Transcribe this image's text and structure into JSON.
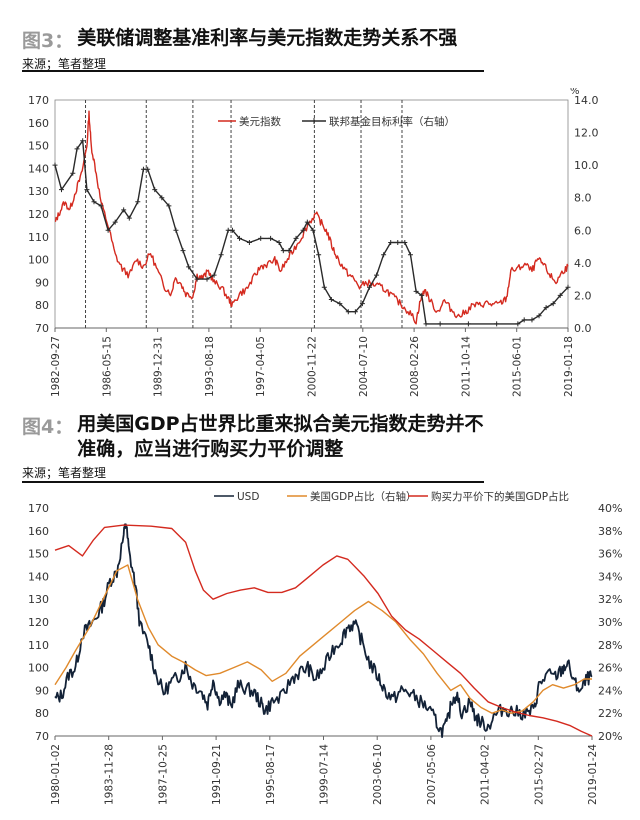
{
  "figure3": {
    "label": "图3：",
    "title": "美联储调整基准利率与美元指数走势关系不强",
    "source": "来源；笔者整理"
  },
  "figure4": {
    "label": "图4：",
    "title_line1": "用美国GDP占世界比重来拟合美元指数走势并不",
    "title_line2": "准确，应当进行购买力平价调整",
    "source": "来源；笔者整理"
  },
  "chart_data": [
    {
      "type": "line",
      "title": "",
      "y_left": {
        "ylim": [
          70,
          170
        ],
        "ticks": [
          70,
          80,
          90,
          100,
          110,
          120,
          130,
          140,
          150,
          160,
          170
        ]
      },
      "y_right": {
        "unit": "%",
        "ylim": [
          0,
          14
        ],
        "ticks": [
          "0.0",
          "2.0",
          "4.0",
          "6.0",
          "8.0",
          "10.0",
          "12.0",
          "14.0"
        ]
      },
      "x_tick_labels": [
        "1982-09-27",
        "1986-05-15",
        "1989-12-31",
        "1993-08-18",
        "1997-04-05",
        "2000-11-22",
        "2004-07-10",
        "2008-02-26",
        "2011-10-14",
        "2015-06-01",
        "2019-01-18"
      ],
      "xlim": [
        1982.74,
        2019.05
      ],
      "vlines": [
        1984.9,
        1989.2,
        1992.5,
        1995.2,
        2001.1,
        2004.4,
        2007.3
      ],
      "legend_position": "top-right",
      "series": [
        {
          "name": "美元指数",
          "axis": "left",
          "color": "#d42a1f",
          "x": [
            1982.74,
            1983.0,
            1983.4,
            1983.8,
            1984.2,
            1984.6,
            1985.0,
            1985.15,
            1985.3,
            1985.6,
            1986.0,
            1986.5,
            1987.0,
            1987.5,
            1988.0,
            1988.5,
            1989.0,
            1989.5,
            1990.0,
            1990.5,
            1991.0,
            1991.2,
            1991.6,
            1992.0,
            1992.5,
            1992.8,
            1993.2,
            1993.6,
            1994.0,
            1994.5,
            1995.0,
            1995.3,
            1995.8,
            1996.3,
            1996.8,
            1997.3,
            1997.8,
            1998.3,
            1998.7,
            1999.2,
            1999.7,
            2000.2,
            2000.7,
            2001.2,
            2001.6,
            2002.0,
            2002.4,
            2002.8,
            2003.3,
            2003.8,
            2004.3,
            2004.8,
            2005.3,
            2005.8,
            2006.3,
            2006.8,
            2007.3,
            2007.8,
            2008.3,
            2008.6,
            2008.9,
            2009.3,
            2009.8,
            2010.3,
            2010.8,
            2011.3,
            2011.8,
            2012.3,
            2012.8,
            2013.3,
            2013.8,
            2014.3,
            2014.7,
            2015.0,
            2015.5,
            2016.0,
            2016.5,
            2016.9,
            2017.3,
            2017.8,
            2018.2,
            2018.7,
            2019.05
          ],
          "y": [
            116,
            120,
            125,
            122,
            130,
            137,
            150,
            164,
            150,
            140,
            125,
            115,
            102,
            96,
            93,
            100,
            97,
            103,
            95,
            88,
            85,
            92,
            90,
            85,
            84,
            93,
            92,
            95,
            90,
            88,
            83,
            80,
            85,
            87,
            92,
            97,
            98,
            100,
            95,
            100,
            105,
            110,
            116,
            120,
            116,
            112,
            105,
            100,
            95,
            92,
            88,
            90,
            89,
            88,
            86,
            83,
            80,
            77,
            73,
            82,
            87,
            82,
            77,
            82,
            78,
            75,
            77,
            80,
            80,
            81,
            80,
            81,
            83,
            95,
            96,
            98,
            95,
            100,
            98,
            93,
            90,
            95,
            97
          ]
        },
        {
          "name": "联邦基金目标利率（右轴）",
          "axis": "right",
          "color": "#2a2a2a",
          "marker": "+",
          "x": [
            1982.74,
            1983.2,
            1984.0,
            1984.3,
            1984.7,
            1985.0,
            1985.5,
            1986.0,
            1986.5,
            1987.0,
            1987.6,
            1988.0,
            1988.6,
            1989.0,
            1989.3,
            1989.8,
            1990.3,
            1990.8,
            1991.3,
            1991.8,
            1992.2,
            1992.8,
            1993.5,
            1994.0,
            1994.5,
            1995.0,
            1995.3,
            1995.8,
            1996.5,
            1997.3,
            1998.0,
            1998.6,
            1998.9,
            1999.3,
            1999.8,
            2000.3,
            2000.6,
            2001.0,
            2001.4,
            2001.8,
            2002.3,
            2002.9,
            2003.5,
            2004.0,
            2004.5,
            2005.0,
            2005.5,
            2006.0,
            2006.5,
            2007.0,
            2007.5,
            2007.9,
            2008.3,
            2008.7,
            2009.0,
            2010.0,
            2012.0,
            2014.0,
            2015.5,
            2015.95,
            2016.5,
            2017.0,
            2017.5,
            2018.0,
            2018.5,
            2019.05
          ],
          "y": [
            10.0,
            8.5,
            9.5,
            11.0,
            11.5,
            8.5,
            7.75,
            7.5,
            6.0,
            6.5,
            7.25,
            6.75,
            7.75,
            9.75,
            9.75,
            8.5,
            8.0,
            7.5,
            6.0,
            4.75,
            3.75,
            3.0,
            3.0,
            3.25,
            4.5,
            6.0,
            6.0,
            5.5,
            5.25,
            5.5,
            5.5,
            5.25,
            4.75,
            4.75,
            5.5,
            6.0,
            6.5,
            6.0,
            4.5,
            2.5,
            1.75,
            1.5,
            1.0,
            1.0,
            1.5,
            2.5,
            3.25,
            4.5,
            5.25,
            5.25,
            5.25,
            4.5,
            2.25,
            2.0,
            0.25,
            0.25,
            0.25,
            0.25,
            0.25,
            0.5,
            0.5,
            0.75,
            1.25,
            1.5,
            2.0,
            2.5
          ]
        }
      ]
    },
    {
      "type": "line",
      "title": "",
      "y_left": {
        "ylim": [
          70,
          170
        ],
        "ticks": [
          70,
          80,
          90,
          100,
          110,
          120,
          130,
          140,
          150,
          160,
          170
        ]
      },
      "y_right": {
        "ylim": [
          20,
          40
        ],
        "ticks": [
          "20%",
          "22%",
          "24%",
          "26%",
          "28%",
          "30%",
          "32%",
          "34%",
          "36%",
          "38%",
          "40%"
        ]
      },
      "x_tick_labels": [
        "1980-01-02",
        "1983-11-28",
        "1987-10-25",
        "1991-09-21",
        "1995-08-17",
        "1999-07-14",
        "2003-06-10",
        "2007-05-06",
        "2011-04-02",
        "2015-02-27",
        "2019-01-24"
      ],
      "xlim": [
        1980.0,
        2019.07
      ],
      "legend_position": "top",
      "series": [
        {
          "name": "USD",
          "axis": "left",
          "color": "#132237",
          "x": [
            1980.0,
            1980.5,
            1981.0,
            1981.5,
            1982.0,
            1982.5,
            1983.0,
            1983.5,
            1984.0,
            1984.5,
            1985.0,
            1985.15,
            1985.4,
            1985.8,
            1986.2,
            1986.8,
            1987.3,
            1987.9,
            1988.5,
            1989.0,
            1989.5,
            1990.0,
            1990.6,
            1991.1,
            1991.5,
            1991.9,
            1992.4,
            1992.8,
            1993.3,
            1993.9,
            1994.5,
            1995.0,
            1995.3,
            1995.8,
            1996.5,
            1997.2,
            1997.8,
            1998.4,
            1998.9,
            1999.5,
            2000.2,
            2000.8,
            2001.3,
            2001.8,
            2002.3,
            2002.9,
            2003.5,
            2004.0,
            2004.6,
            2005.2,
            2005.8,
            2006.4,
            2007.0,
            2007.6,
            2008.1,
            2008.5,
            2008.9,
            2009.2,
            2009.6,
            2010.2,
            2010.6,
            2011.0,
            2011.5,
            2012.0,
            2012.6,
            2013.2,
            2013.8,
            2014.4,
            2014.9,
            2015.2,
            2015.8,
            2016.4,
            2016.9,
            2017.3,
            2017.8,
            2018.3,
            2018.7,
            2019.07
          ],
          "y": [
            86,
            88,
            97,
            100,
            115,
            118,
            122,
            128,
            138,
            142,
            158,
            164,
            150,
            138,
            118,
            110,
            98,
            89,
            94,
            96,
            101,
            93,
            90,
            84,
            95,
            86,
            88,
            83,
            92,
            91,
            89,
            84,
            81,
            85,
            87,
            95,
            98,
            100,
            95,
            99,
            108,
            112,
            118,
            119,
            112,
            102,
            96,
            90,
            86,
            90,
            89,
            86,
            83,
            78,
            72,
            75,
            86,
            88,
            80,
            85,
            78,
            76,
            74,
            79,
            82,
            81,
            80,
            80,
            82,
            92,
            97,
            96,
            99,
            102,
            93,
            90,
            95,
            96
          ]
        },
        {
          "name": "美国GDP占比（右轴）",
          "axis": "right",
          "color": "#e08a2c",
          "x": [
            1980.0,
            1980.8,
            1981.5,
            1982.5,
            1983.5,
            1984.5,
            1985.3,
            1986.0,
            1986.8,
            1987.5,
            1988.5,
            1989.3,
            1990.2,
            1991.0,
            1992.0,
            1993.0,
            1994.0,
            1995.0,
            1995.8,
            1996.8,
            1997.8,
            1998.8,
            1999.8,
            2000.8,
            2001.8,
            2002.8,
            2003.8,
            2004.8,
            2005.8,
            2006.8,
            2007.8,
            2008.8,
            2009.5,
            2010.2,
            2011.0,
            2011.8,
            2012.5,
            2013.2,
            2014.0,
            2014.8,
            2015.5,
            2016.2,
            2017.0,
            2017.8,
            2018.5,
            2019.07
          ],
          "y": [
            24.5,
            26.0,
            27.5,
            29.5,
            32.0,
            34.5,
            35.0,
            32.0,
            29.5,
            28.0,
            27.0,
            26.5,
            25.8,
            25.3,
            25.5,
            26.0,
            26.5,
            25.8,
            24.8,
            25.5,
            27.0,
            28.0,
            29.0,
            30.0,
            31.0,
            31.8,
            31.0,
            30.0,
            28.5,
            27.2,
            25.5,
            24.0,
            24.5,
            23.3,
            22.5,
            22.0,
            22.3,
            22.0,
            22.2,
            23.0,
            24.0,
            24.5,
            24.2,
            24.5,
            25.0,
            25.0
          ]
        },
        {
          "name": "购买力平价下的美国GDP占比",
          "axis": "right",
          "color": "#d42a1f",
          "x": [
            1980.0,
            1981.0,
            1982.0,
            1982.8,
            1983.6,
            1985.0,
            1987.0,
            1988.5,
            1989.5,
            1990.2,
            1990.8,
            1991.5,
            1992.5,
            1993.5,
            1994.5,
            1995.5,
            1996.5,
            1997.5,
            1998.5,
            1999.5,
            2000.5,
            2001.3,
            2002.5,
            2003.5,
            2004.5,
            2005.5,
            2006.5,
            2007.5,
            2008.5,
            2009.5,
            2010.5,
            2011.5,
            2012.5,
            2013.5,
            2014.5,
            2015.5,
            2016.5,
            2017.5,
            2018.3,
            2019.07
          ],
          "y": [
            36.3,
            36.7,
            35.8,
            37.2,
            38.3,
            38.5,
            38.4,
            38.2,
            37.0,
            34.5,
            32.8,
            32.0,
            32.5,
            32.8,
            33.0,
            32.6,
            32.6,
            33.0,
            34.0,
            35.0,
            35.8,
            35.5,
            34.0,
            32.5,
            30.5,
            29.3,
            28.5,
            27.5,
            26.5,
            25.5,
            24.2,
            23.0,
            22.5,
            22.1,
            21.8,
            21.6,
            21.3,
            20.9,
            20.4,
            20.0
          ]
        }
      ]
    }
  ]
}
